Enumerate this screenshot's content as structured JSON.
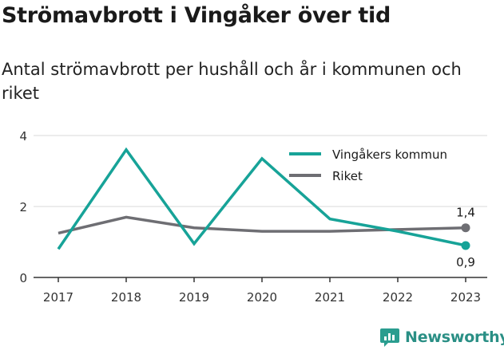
{
  "title": "Strömavbrott i Vingåker över tid",
  "subtitle": "Antal strömavbrott per hushåll och år i kommunen och riket",
  "brand": {
    "name": "Newsworthy",
    "icon": "newsworthy-logo-icon",
    "color": "#2a9d8f"
  },
  "chart_data": {
    "type": "line",
    "x": [
      "2017",
      "2018",
      "2019",
      "2020",
      "2021",
      "2022",
      "2023"
    ],
    "ylim": [
      0,
      4
    ],
    "y_ticks": [
      "0",
      "2",
      "4"
    ],
    "grid": true,
    "legend_position": "top-right",
    "series": [
      {
        "name": "Vingåkers kommun",
        "color": "#17a398",
        "values": [
          0.8,
          3.6,
          0.95,
          3.35,
          1.65,
          1.3,
          0.9
        ],
        "end_label": "0,9"
      },
      {
        "name": "Riket",
        "color": "#6e6e73",
        "values": [
          1.25,
          1.7,
          1.4,
          1.3,
          1.3,
          1.35,
          1.4
        ],
        "end_label": "1,4"
      }
    ]
  }
}
